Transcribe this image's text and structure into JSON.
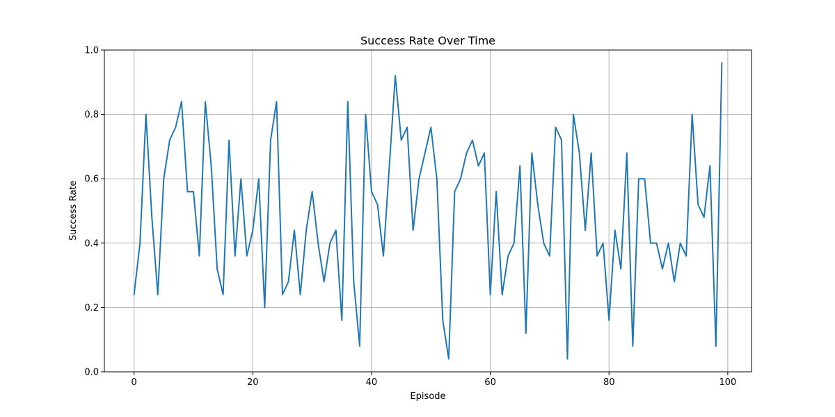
{
  "chart_data": {
    "type": "line",
    "title": "Success Rate Over Time",
    "xlabel": "Episode",
    "ylabel": "Success Rate",
    "xlim": [
      -5,
      104
    ],
    "ylim": [
      0.0,
      1.0
    ],
    "xticks": [
      0,
      20,
      40,
      60,
      80,
      100
    ],
    "yticks": [
      0.0,
      0.2,
      0.4,
      0.6,
      0.8,
      1.0
    ],
    "xtick_labels": [
      "0",
      "20",
      "40",
      "60",
      "80",
      "100"
    ],
    "ytick_labels": [
      "0.0",
      "0.2",
      "0.4",
      "0.6",
      "0.8",
      "1.0"
    ],
    "grid": true,
    "series": [
      {
        "color": "#1f77b4",
        "x": [
          0,
          1,
          2,
          3,
          4,
          5,
          6,
          7,
          8,
          9,
          10,
          11,
          12,
          13,
          14,
          15,
          16,
          17,
          18,
          19,
          20,
          21,
          22,
          23,
          24,
          25,
          26,
          27,
          28,
          29,
          30,
          31,
          32,
          33,
          34,
          35,
          36,
          37,
          38,
          39,
          40,
          41,
          42,
          43,
          44,
          45,
          46,
          47,
          48,
          49,
          50,
          51,
          52,
          53,
          54,
          55,
          56,
          57,
          58,
          59,
          60,
          61,
          62,
          63,
          64,
          65,
          66,
          67,
          68,
          69,
          70,
          71,
          72,
          73,
          74,
          75,
          76,
          77,
          78,
          79,
          80,
          81,
          82,
          83,
          84,
          85,
          86,
          87,
          88,
          89,
          90,
          91,
          92,
          93,
          94,
          95,
          96,
          97,
          98,
          99
        ],
        "values": [
          0.24,
          0.4,
          0.8,
          0.48,
          0.24,
          0.6,
          0.72,
          0.76,
          0.84,
          0.56,
          0.56,
          0.36,
          0.84,
          0.64,
          0.32,
          0.24,
          0.72,
          0.36,
          0.6,
          0.36,
          0.44,
          0.6,
          0.2,
          0.72,
          0.84,
          0.24,
          0.28,
          0.44,
          0.24,
          0.44,
          0.56,
          0.4,
          0.28,
          0.4,
          0.44,
          0.16,
          0.84,
          0.28,
          0.08,
          0.8,
          0.56,
          0.52,
          0.36,
          0.64,
          0.92,
          0.72,
          0.76,
          0.44,
          0.6,
          0.68,
          0.76,
          0.6,
          0.16,
          0.04,
          0.56,
          0.6,
          0.68,
          0.72,
          0.64,
          0.68,
          0.24,
          0.56,
          0.24,
          0.36,
          0.4,
          0.64,
          0.12,
          0.68,
          0.52,
          0.4,
          0.36,
          0.76,
          0.72,
          0.04,
          0.8,
          0.68,
          0.44,
          0.68,
          0.36,
          0.4,
          0.16,
          0.44,
          0.32,
          0.68,
          0.08,
          0.6,
          0.6,
          0.4,
          0.4,
          0.32,
          0.4,
          0.28,
          0.4,
          0.36,
          0.8,
          0.52,
          0.48,
          0.64,
          0.08,
          0.96
        ]
      }
    ]
  }
}
